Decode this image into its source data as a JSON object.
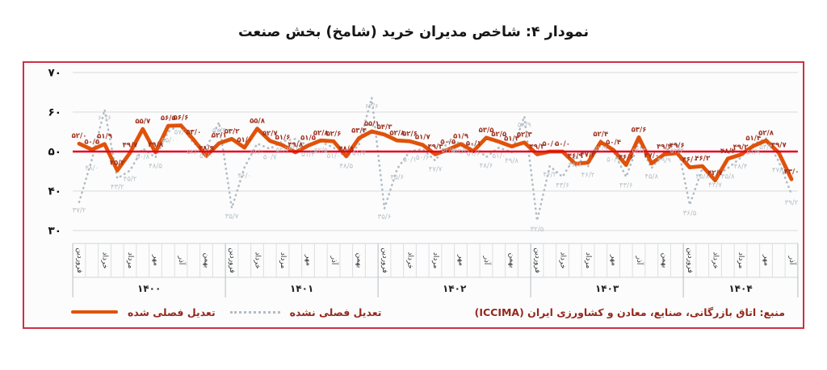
{
  "title": "نمودار ۴: شاخص مدیران خرید (شامخ) بخش صنعت",
  "legend": {
    "adjusted": "تعدیل فصلی شده",
    "unadjusted": "تعدیل فصلی نشده"
  },
  "source": "منبع: اتاق بازرگانی، صنایع، معادن و کشاورزی ایران (ICCIMA)",
  "colors": {
    "adjusted_line": "#e0520a",
    "unadjusted_line": "#b2bcc4",
    "reference_line": "#e4001f",
    "adjusted_label_text": "#9e3322",
    "unadjusted_label_text": "#b7c0c7",
    "frame_border": "#cd3044",
    "gridline": "#dadada",
    "legend_source_text": "#93291d"
  },
  "chart_data": {
    "type": "line",
    "title": "نمودار ۴: شاخص مدیران خرید (شامخ) بخش صنعت",
    "ylim": [
      30,
      70
    ],
    "yticks": [
      70,
      60,
      50,
      40,
      30
    ],
    "ytick_labels": [
      "۷۰",
      "۶۰",
      "۵۰",
      "۴۰",
      "۳۰"
    ],
    "reference_line": 50,
    "grid": "horizontal",
    "legend_position": "bottom-left",
    "years": [
      {
        "label": "۱۴۰۰",
        "months": [
          "فروردین",
          "",
          "خرداد",
          "",
          "مرداد",
          "",
          "مهر",
          "",
          "آذر",
          "",
          "بهمن",
          ""
        ]
      },
      {
        "label": "۱۴۰۱",
        "months": [
          "فروردین",
          "",
          "خرداد",
          "",
          "مرداد",
          "",
          "مهر",
          "",
          "آذر",
          "",
          "بهمن",
          ""
        ]
      },
      {
        "label": "۱۴۰۲",
        "months": [
          "فروردین",
          "",
          "خرداد",
          "",
          "مرداد",
          "",
          "مهر",
          "",
          "آذر",
          "",
          "بهمن",
          ""
        ]
      },
      {
        "label": "۱۴۰۳",
        "months": [
          "فروردین",
          "",
          "خرداد",
          "",
          "مرداد",
          "",
          "مهر",
          "",
          "آذر",
          "",
          "بهمن",
          ""
        ]
      },
      {
        "label": "۱۴۰۴",
        "months": [
          "فروردین",
          "",
          "خرداد",
          "",
          "مرداد",
          "",
          "مهر",
          "",
          "آذر"
        ]
      }
    ],
    "series": [
      {
        "name": "تعدیل فصلی شده",
        "style": "solid",
        "color": "#e0520a",
        "values": [
          52.0,
          50.5,
          51.9,
          45.2,
          49.7,
          55.7,
          49.8,
          56.5,
          56.6,
          53.0,
          48.9,
          52.1,
          53.2,
          51.0,
          55.8,
          52.7,
          51.6,
          49.8,
          51.5,
          52.8,
          52.6,
          48.8,
          53.4,
          55.1,
          54.3,
          52.8,
          52.6,
          51.7,
          49.3,
          50.5,
          51.9,
          50.1,
          53.5,
          52.5,
          51.3,
          52.3,
          49.3,
          50.0,
          50.0,
          46.9,
          47.2,
          52.4,
          50.4,
          46.6,
          53.6,
          47.0,
          49.3,
          49.6,
          46.0,
          46.3,
          42.7,
          48.2,
          49.2,
          51.4,
          52.8,
          49.7,
          43.0
        ]
      },
      {
        "name": "تعدیل فصلی نشده",
        "style": "dotted",
        "color": "#b2bcc4",
        "values": [
          37.2,
          48.0,
          60.6,
          43.2,
          45.2,
          50.8,
          48.5,
          55.0,
          57.0,
          52.0,
          51.0,
          57.4,
          35.7,
          46.0,
          52.0,
          50.7,
          52.6,
          53.2,
          51.4,
          52.5,
          51.0,
          48.5,
          51.7,
          63.6,
          35.6,
          45.6,
          50.1,
          50.6,
          47.7,
          52.5,
          52.2,
          51.6,
          48.6,
          51.0,
          49.8,
          58.9,
          32.5,
          46.3,
          43.6,
          48.8,
          46.2,
          52.9,
          50.1,
          43.6,
          52.3,
          45.8,
          49.9,
          52.3,
          36.5,
          45.8,
          43.7,
          45.8,
          48.4,
          51.9,
          53.3,
          47.5,
          39.2
        ]
      }
    ]
  }
}
